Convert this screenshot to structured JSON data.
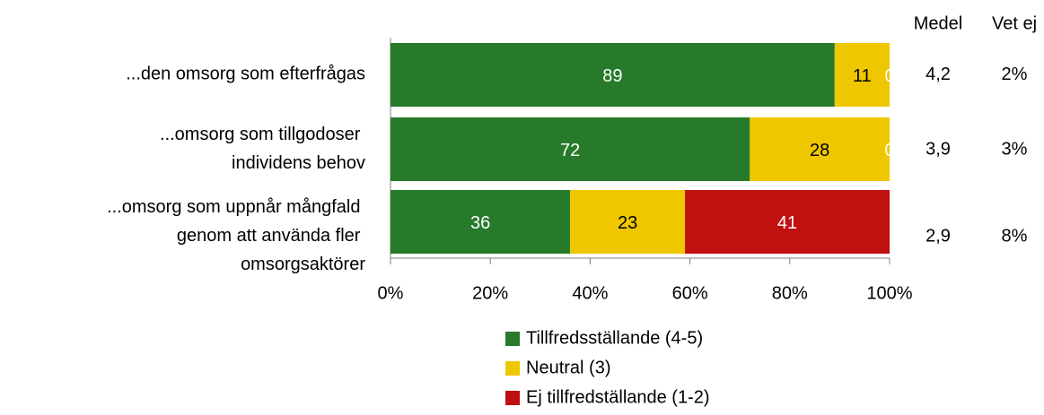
{
  "chart_data": {
    "type": "stacked_barh",
    "categories": [
      "...den omsorg som efterfrågas",
      "...omsorg som tillgodoser individens behov",
      "...omsorg som uppnår mångfald genom att använda fler omsorgsaktörer"
    ],
    "series": [
      {
        "name": "Tillfredsställande (4-5)",
        "color": "#267a2a",
        "values": [
          89,
          72,
          36
        ]
      },
      {
        "name": "Neutral (3)",
        "color": "#efc700",
        "values": [
          11,
          28,
          23
        ]
      },
      {
        "name": "Ej tillfredställande (1-2)",
        "color": "#c01010",
        "values": [
          0,
          0,
          41
        ]
      }
    ],
    "xlim": [
      0,
      100
    ],
    "xticks": [
      {
        "value": 0,
        "label": "0%"
      },
      {
        "value": 20,
        "label": "20%"
      },
      {
        "value": 40,
        "label": "40%"
      },
      {
        "value": 60,
        "label": "60%"
      },
      {
        "value": 80,
        "label": "80%"
      },
      {
        "value": 100,
        "label": "100%"
      }
    ],
    "columns": [
      {
        "name": "Medel",
        "values": [
          4.2,
          3.9,
          2.9
        ],
        "value_labels": [
          "4,2",
          "3,9",
          "2,9"
        ]
      },
      {
        "name": "Vet ej",
        "values": [
          2,
          3,
          8
        ],
        "value_labels": [
          "2%",
          "3%",
          "8%"
        ]
      }
    ],
    "legend": "bottom"
  }
}
